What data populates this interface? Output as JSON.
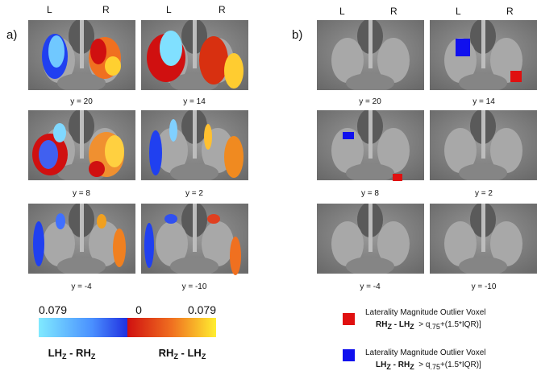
{
  "panel_a": {
    "label": "a)",
    "hemisphere_labels": [
      "L",
      "R",
      "L",
      "R"
    ],
    "slices": [
      "y = 20",
      "y = 14",
      "y = 8",
      "y = 2",
      "y = -4",
      "y = -10"
    ],
    "colorbar": {
      "ticks": [
        "0.079",
        "0",
        "0.079"
      ],
      "left_caption": [
        "LH",
        "Z",
        " - RH",
        "Z"
      ],
      "right_caption": [
        "RH",
        "Z",
        " - LH",
        "Z"
      ]
    }
  },
  "panel_b": {
    "label": "b)",
    "hemisphere_labels": [
      "L",
      "R",
      "L",
      "R"
    ],
    "slices": [
      "y = 20",
      "y = 14",
      "y = 8",
      "y = 2",
      "y = -4",
      "y = -10"
    ],
    "legend": [
      {
        "title": "Laterality Magnitude Outlier Voxel",
        "formula": [
          "RH",
          "Z",
          " - LH",
          "Z",
          "  > q",
          ".75",
          "+(1.5*IQR)]"
        ]
      },
      {
        "title": "Laterality Magnitude Outlier Voxel",
        "formula": [
          "LH",
          "Z",
          " - RH",
          "Z",
          "  > q",
          ".75",
          "+(1.5*IQR)]"
        ]
      }
    ]
  }
}
